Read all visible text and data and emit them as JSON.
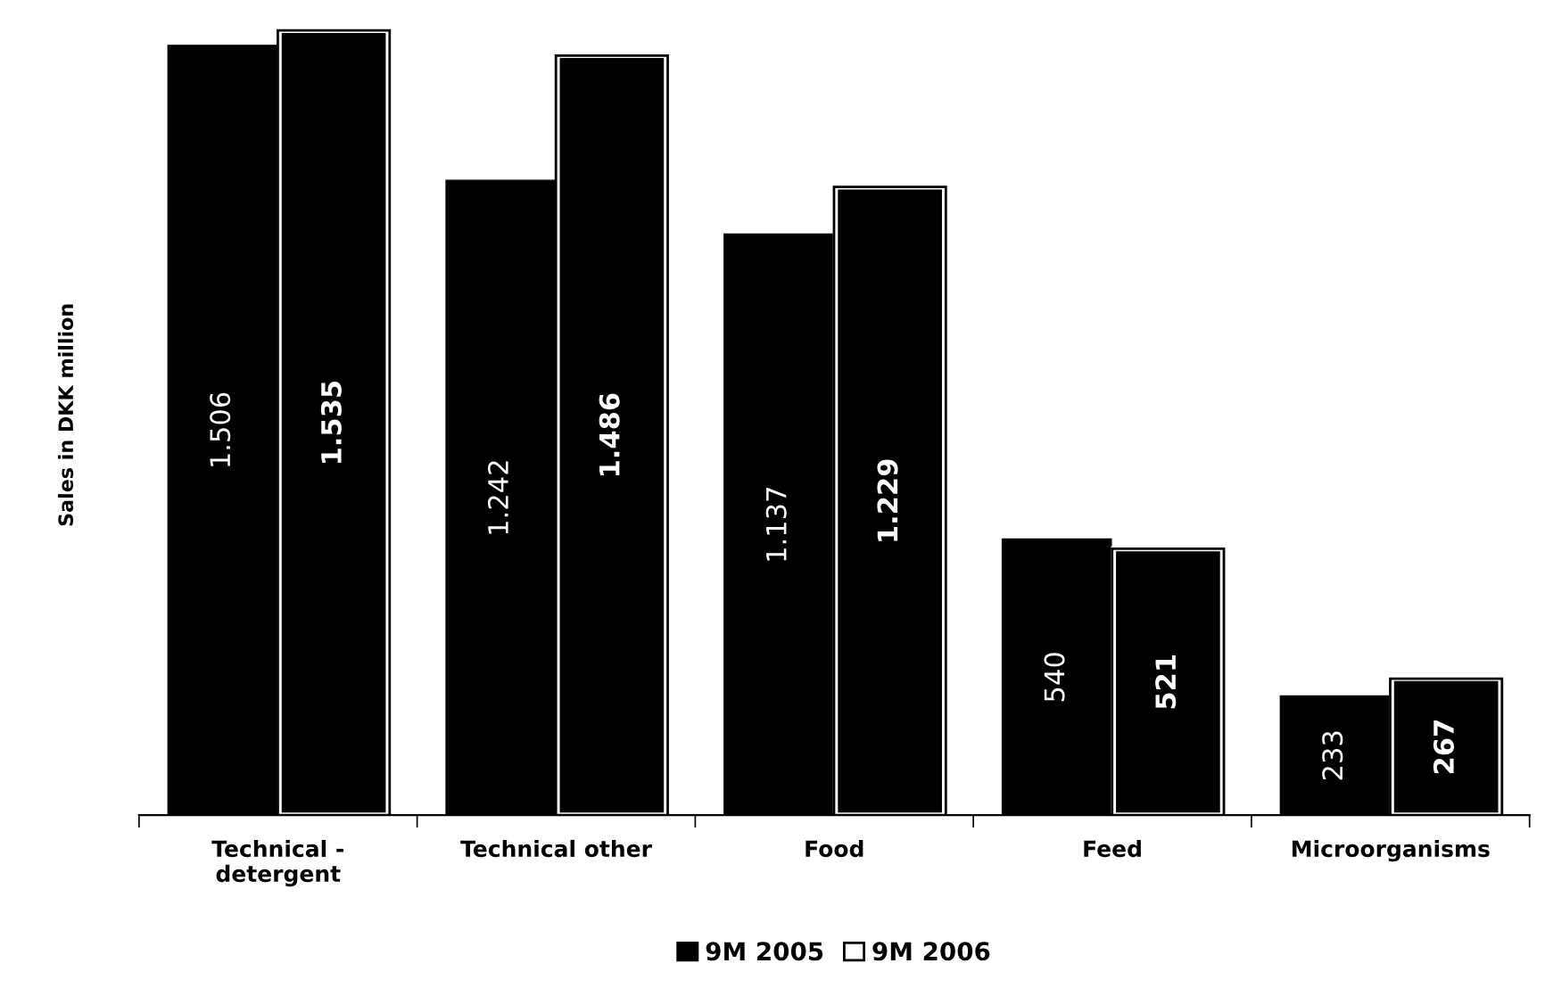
{
  "chart_data": {
    "type": "bar",
    "ylabel": "Sales in DKK million",
    "categories": [
      "Technical -\ndetergent",
      "Technical other",
      "Food",
      "Feed",
      "Microorganisms"
    ],
    "series": [
      {
        "name": "9M 2005",
        "color": "#000000",
        "values": [
          1506,
          1242,
          1137,
          540,
          233
        ],
        "value_labels": [
          "1.506",
          "1.242",
          "1.137",
          "540",
          "233"
        ]
      },
      {
        "name": "9M 2006",
        "color": "#000000",
        "values": [
          1535,
          1486,
          1229,
          521,
          267
        ],
        "value_labels": [
          "1.535",
          "1.486",
          "1.229",
          "521",
          "267"
        ]
      }
    ],
    "legend": "bottom",
    "grid": false
  }
}
